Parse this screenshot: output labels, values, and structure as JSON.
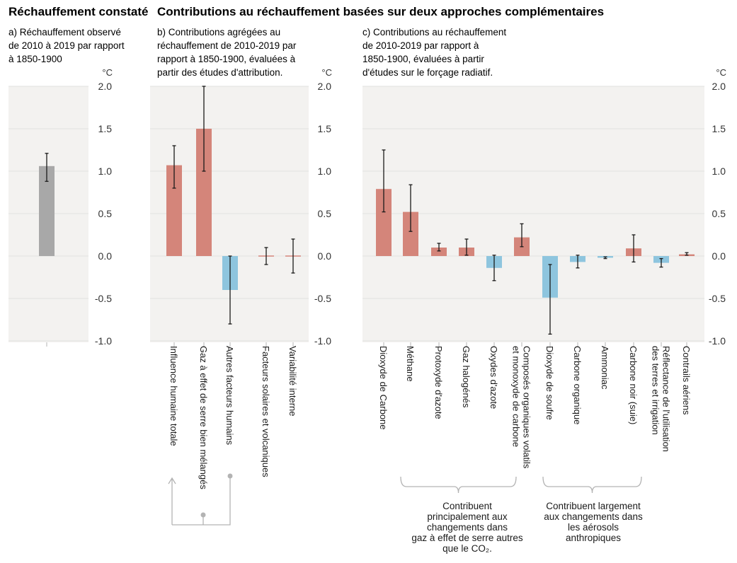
{
  "titles": {
    "left": "Réchauffement constaté",
    "right": "Contributions au réchauffement basées sur deux approches complémentaires"
  },
  "panels": [
    {
      "id": "a",
      "subtitle": [
        "a) Réchauffement observé",
        "de 2010 à 2019 par rapport",
        "à 1850-1900"
      ]
    },
    {
      "id": "b",
      "subtitle": [
        "b) Contributions agrégées au",
        "réchauffement de 2010-2019 par",
        "rapport à 1850-1900, évaluées à",
        "partir des études d'attribution."
      ]
    },
    {
      "id": "c",
      "subtitle": [
        "c) Contributions au réchauffement",
        "de 2010-2019 par rapport à",
        "1850-1900, évaluées à partir",
        "d'études sur le forçage radiatif."
      ]
    }
  ],
  "unit": "°C",
  "ticks": [
    "2.0",
    "1.5",
    "1.0",
    "0.5",
    "0.0",
    "-0.5",
    "-1.0"
  ],
  "colors": {
    "warming": "#d4857a",
    "cooling": "#8ec5de",
    "observed": "#a8a8a8",
    "panel_bg": "#f3f2f0",
    "bracket": "#b3b3b3"
  },
  "chart_data": [
    {
      "type": "bar",
      "panel": "a",
      "ylim": [
        -1.0,
        2.0
      ],
      "categories": [
        ""
      ],
      "values": [
        1.06
      ],
      "error_low": [
        0.88
      ],
      "error_high": [
        1.21
      ],
      "colors": [
        "observed"
      ]
    },
    {
      "type": "bar",
      "panel": "b",
      "ylim": [
        -1.0,
        2.0
      ],
      "categories": [
        "Influence humaine totale",
        "Gaz à effet de serre bien mélangés",
        "Autres facteurs humains",
        "Facteurs solaires et volcaniques",
        "Variabilité interne"
      ],
      "values": [
        1.07,
        1.5,
        -0.4,
        0.0,
        0.0
      ],
      "error_low": [
        0.8,
        1.0,
        -0.8,
        -0.1,
        -0.2
      ],
      "error_high": [
        1.3,
        2.0,
        0.0,
        0.1,
        0.2
      ],
      "colors": [
        "warming",
        "warming",
        "cooling",
        "warming",
        "warming"
      ]
    },
    {
      "type": "bar",
      "panel": "c",
      "ylim": [
        -1.0,
        2.0
      ],
      "categories": [
        [
          "Dioxyde de Carbone"
        ],
        [
          "Méthane"
        ],
        [
          "Protoxyde d'azote"
        ],
        [
          "Gaz halogénés"
        ],
        [
          "Oxydes d'azote"
        ],
        [
          "Composés organiques volatils",
          "et monoxyde de carbone"
        ],
        [
          "Dioxyde de soufre"
        ],
        [
          "Carbone organique"
        ],
        [
          "Ammoniac"
        ],
        [
          "Carbone noir (suie)"
        ],
        [
          "Réflectance de l'utilisation",
          "des terres et irrigation"
        ],
        [
          "Contrails aériens"
        ]
      ],
      "values": [
        0.79,
        0.52,
        0.1,
        0.1,
        -0.14,
        0.22,
        -0.49,
        -0.07,
        -0.02,
        0.09,
        -0.08,
        0.02
      ],
      "error_low": [
        0.52,
        0.29,
        0.06,
        0.01,
        -0.29,
        0.11,
        -0.92,
        -0.14,
        -0.03,
        -0.07,
        -0.13,
        0.01
      ],
      "error_high": [
        1.25,
        0.84,
        0.15,
        0.2,
        0.01,
        0.38,
        -0.1,
        0.01,
        -0.01,
        0.25,
        -0.03,
        0.04
      ],
      "colors": [
        "warming",
        "warming",
        "warming",
        "warming",
        "cooling",
        "warming",
        "cooling",
        "cooling",
        "cooling",
        "warming",
        "cooling",
        "warming"
      ]
    }
  ],
  "groups": [
    {
      "lines": [
        "Contribuent",
        "principalement aux",
        "changements dans",
        "gaz à effet de serre autres",
        "que le CO₂."
      ]
    },
    {
      "lines": [
        "Contribuent largement",
        "aux changements dans",
        "les aérosols",
        "anthropiques"
      ]
    }
  ]
}
